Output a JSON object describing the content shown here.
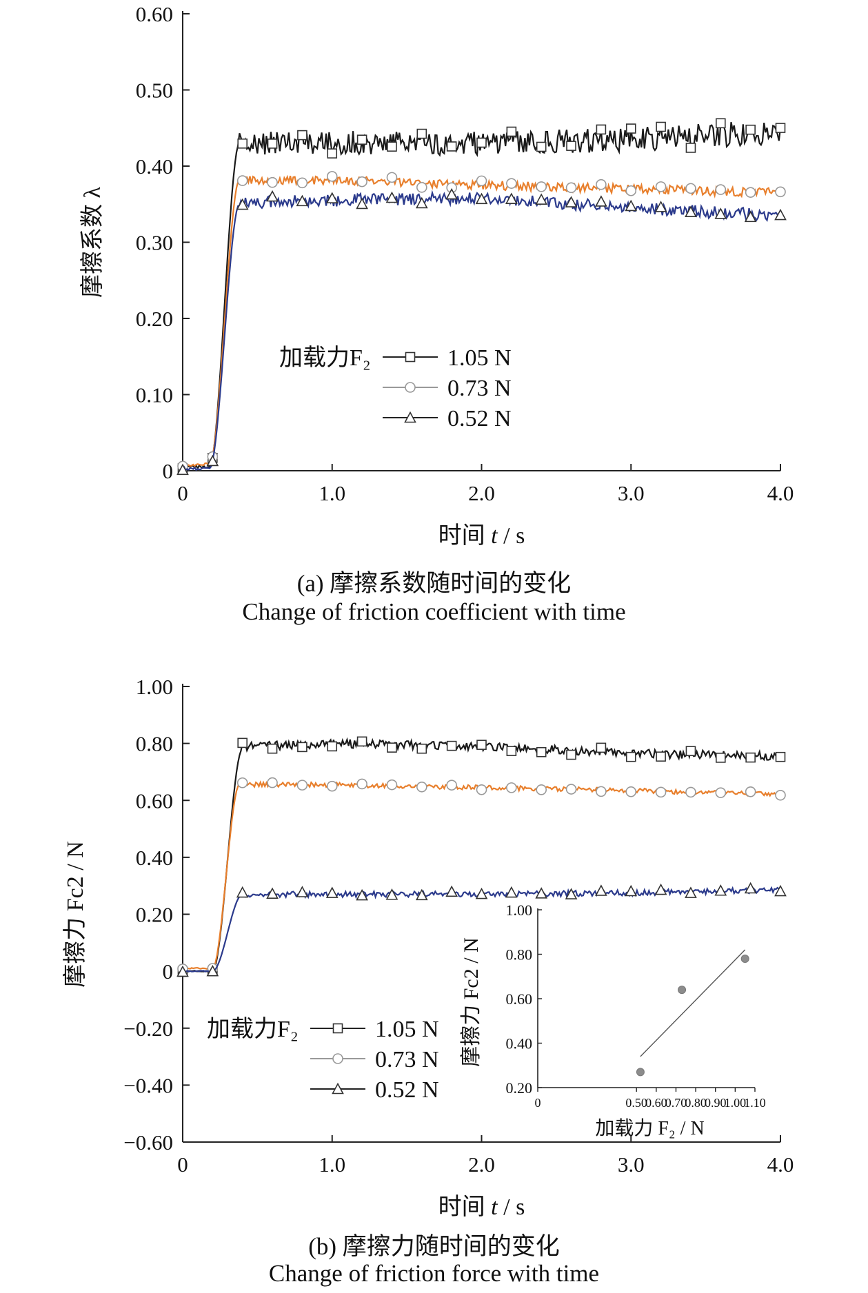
{
  "captions": {
    "a_cn": "(a) 摩擦系数随时间的变化",
    "a_en": "Change of friction coefficient with time",
    "b_cn": "(b) 摩擦力随时间的变化",
    "b_en": "Change of friction force with time"
  },
  "colors": {
    "series_1_05": "#1a1a1a",
    "series_0_73": "#e87f2c",
    "series_0_52": "#2b3a8c",
    "axis": "#222222",
    "marker_fill": "#ffffff",
    "inset_point": "#8c8c8c"
  },
  "chart_data": [
    {
      "id": "a",
      "type": "line",
      "xlabel_prefix": "时间 ",
      "xlabel_var": "t",
      "xlabel_unit": " / s",
      "ylabel": "摩擦系数 λ",
      "xlim": [
        0,
        4.0
      ],
      "ylim": [
        0,
        0.6
      ],
      "xticks": [
        "0",
        "1.0",
        "2.0",
        "3.0",
        "4.0"
      ],
      "yticks": [
        "0",
        "0.10",
        "0.20",
        "0.30",
        "0.40",
        "0.50",
        "0.60"
      ],
      "legend_title": "加载力F₂",
      "legend_placement": "center",
      "series": [
        {
          "name": "1.05 N",
          "marker": "square",
          "start": 0.005,
          "rise_start": 0.18,
          "rise_end": 0.38,
          "plateau": [
            0.43,
            0.43,
            0.43,
            0.435,
            0.445
          ],
          "noise": 0.016
        },
        {
          "name": "0.73 N",
          "marker": "circle",
          "start": 0.008,
          "rise_start": 0.18,
          "rise_end": 0.38,
          "plateau": [
            0.382,
            0.382,
            0.375,
            0.37,
            0.365
          ],
          "noise": 0.006
        },
        {
          "name": "0.52 N",
          "marker": "triangle",
          "start": 0.003,
          "rise_start": 0.18,
          "rise_end": 0.38,
          "plateau": [
            0.35,
            0.355,
            0.358,
            0.345,
            0.335
          ],
          "noise": 0.008
        }
      ]
    },
    {
      "id": "b",
      "type": "line",
      "xlabel_prefix": "时间 ",
      "xlabel_var": "t",
      "xlabel_unit": " / s",
      "ylabel": "摩擦力 Fc2 / N",
      "xlim": [
        0,
        4.0
      ],
      "ylim": [
        -0.6,
        1.0
      ],
      "xticks": [
        "0",
        "1.0",
        "2.0",
        "3.0",
        "4.0"
      ],
      "yticks": [
        "−0.60",
        "−0.40",
        "−0.20",
        "0",
        "0.20",
        "0.40",
        "0.60",
        "0.80",
        "1.00"
      ],
      "legend_title": "加载力F₂",
      "legend_placement": "lower-left",
      "series": [
        {
          "name": "1.05 N",
          "marker": "square",
          "start": 0.0,
          "rise_start": 0.2,
          "rise_end": 0.4,
          "plateau": [
            0.78,
            0.8,
            0.79,
            0.765,
            0.755
          ],
          "noise": 0.015
        },
        {
          "name": "0.73 N",
          "marker": "circle",
          "start": 0.01,
          "rise_start": 0.2,
          "rise_end": 0.38,
          "plateau": [
            0.655,
            0.655,
            0.645,
            0.635,
            0.62
          ],
          "noise": 0.008
        },
        {
          "name": "0.52 N",
          "marker": "triangle",
          "start": 0.0,
          "rise_start": 0.2,
          "rise_end": 0.4,
          "plateau": [
            0.27,
            0.27,
            0.27,
            0.275,
            0.285
          ],
          "noise": 0.01
        }
      ],
      "inset": {
        "type": "scatter",
        "xlabel": "加载力 F₂ / N",
        "ylabel": "摩擦力 Fc2 / N",
        "xlim": [
          0,
          1.1
        ],
        "ylim": [
          0.2,
          1.0
        ],
        "xticks": [
          "0",
          "0.50",
          "0.60",
          "0.70",
          "0.80",
          "0.90",
          "1.00",
          "1.10"
        ],
        "yticks": [
          "0.20",
          "0.40",
          "0.60",
          "0.80",
          "1.00"
        ],
        "points": [
          {
            "x": 0.52,
            "y": 0.27
          },
          {
            "x": 0.73,
            "y": 0.64
          },
          {
            "x": 1.05,
            "y": 0.78
          }
        ],
        "fit_line": [
          [
            0.52,
            0.34
          ],
          [
            1.05,
            0.82
          ]
        ]
      }
    }
  ]
}
